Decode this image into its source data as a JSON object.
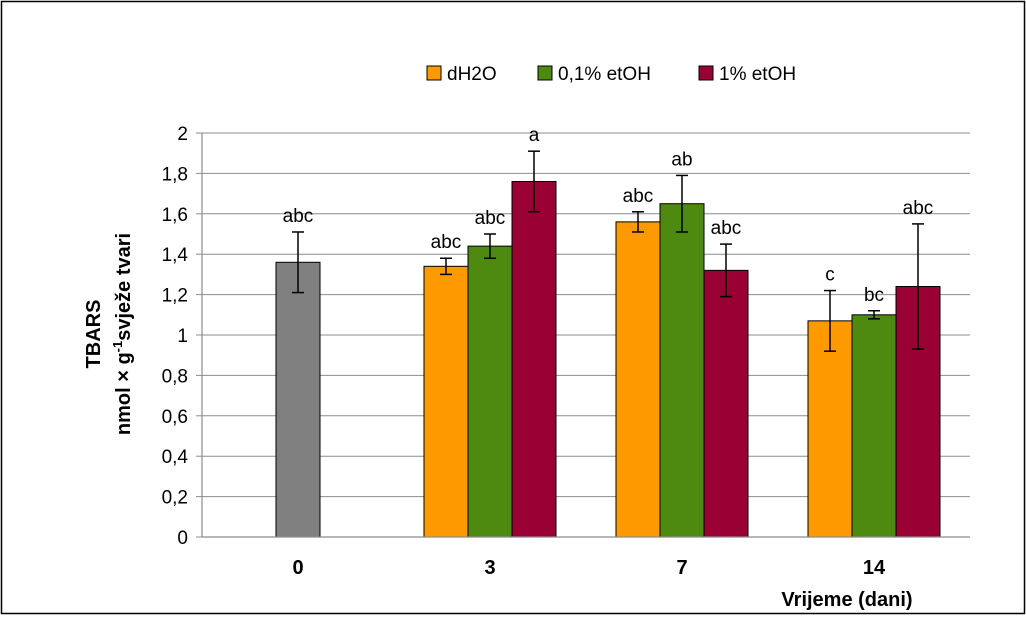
{
  "chart_data": {
    "type": "bar",
    "categories": [
      "0",
      "3",
      "7",
      "14"
    ],
    "control": {
      "values": [
        1.36,
        null,
        null,
        null
      ],
      "errors": [
        0.15,
        null,
        null,
        null
      ],
      "labels": [
        "abc",
        "",
        "",
        ""
      ],
      "color": "#808080"
    },
    "series": [
      {
        "name": "dH2O",
        "color": "#FF9900",
        "values": [
          null,
          1.34,
          1.56,
          1.07
        ],
        "errors": [
          null,
          0.04,
          0.05,
          0.15
        ],
        "labels": [
          "",
          "abc",
          "abc",
          "c"
        ]
      },
      {
        "name": "0,1% etOH",
        "color": "#4F8A10",
        "values": [
          null,
          1.44,
          1.65,
          1.1
        ],
        "errors": [
          null,
          0.06,
          0.14,
          0.02
        ],
        "labels": [
          "",
          "abc",
          "ab",
          "bc"
        ]
      },
      {
        "name": "1% etOH",
        "color": "#990033",
        "values": [
          null,
          1.76,
          1.32,
          1.24
        ],
        "errors": [
          null,
          0.15,
          0.13,
          0.31
        ],
        "labels": [
          "",
          "a",
          "abc",
          "abc"
        ]
      }
    ],
    "ylabel_line1": "TBARS",
    "ylabel_line2_pre": "nmol × g",
    "ylabel_line2_sup": "-1",
    "ylabel_line2_post": "svježe tvari",
    "xlabel": "Vrijeme (dani)",
    "ylim": [
      0,
      2
    ],
    "yticks": [
      "0",
      "0,2",
      "0,4",
      "0,6",
      "0,8",
      "1",
      "1,2",
      "1,4",
      "1,6",
      "1,8",
      "2"
    ],
    "grid": true,
    "legend_position": "top"
  }
}
